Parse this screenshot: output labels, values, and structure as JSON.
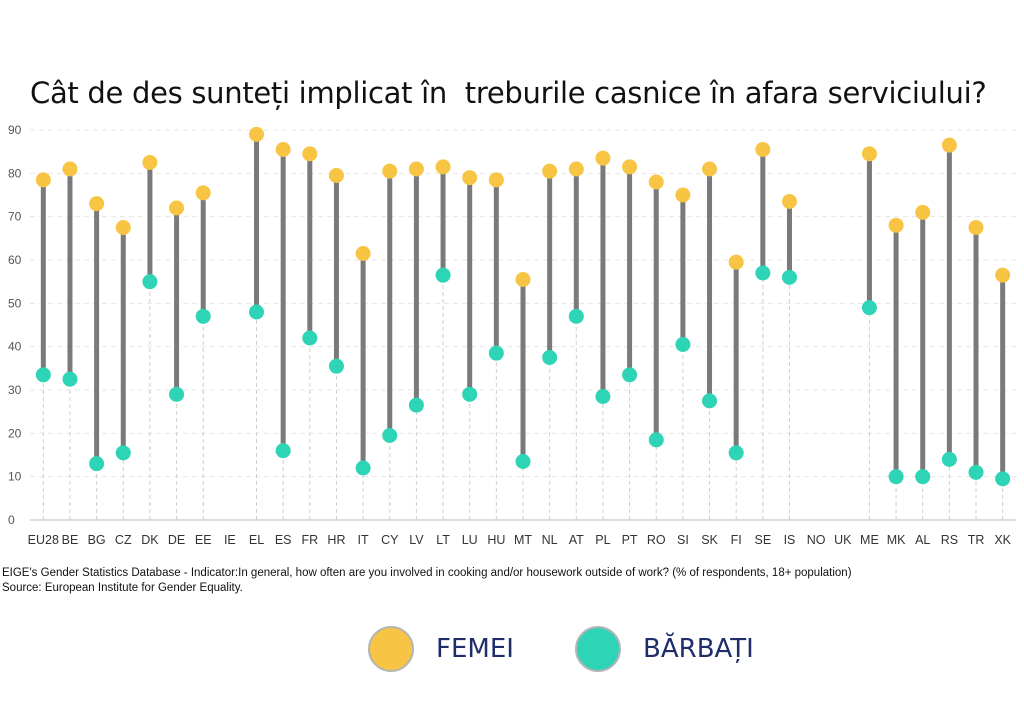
{
  "chart_data": {
    "type": "dumbbell",
    "title": "Cât de des sunteți implicat în  treburile casnice în afara serviciului?",
    "ylim": [
      0,
      90
    ],
    "yticks": [
      0,
      10,
      20,
      30,
      40,
      50,
      60,
      70,
      80,
      90
    ],
    "grid": true,
    "categories": [
      "EU28",
      "BE",
      "BG",
      "CZ",
      "DK",
      "DE",
      "EE",
      "IE",
      "EL",
      "ES",
      "FR",
      "HR",
      "IT",
      "CY",
      "LV",
      "LT",
      "LU",
      "HU",
      "MT",
      "NL",
      "AT",
      "PL",
      "PT",
      "RO",
      "SI",
      "SK",
      "FI",
      "SE",
      "IS",
      "NO",
      "UK",
      "ME",
      "MK",
      "AL",
      "RS",
      "TR",
      "XK"
    ],
    "series": [
      {
        "name": "FEMEI",
        "color": "#f7c443",
        "values": [
          78.5,
          81,
          73,
          67.5,
          82.5,
          72,
          75.5,
          null,
          89,
          85.5,
          84.5,
          79.5,
          61.5,
          80.5,
          81,
          81.5,
          79,
          78.5,
          55.5,
          80.5,
          81,
          83.5,
          81.5,
          78,
          75,
          81,
          59.5,
          85.5,
          73.5,
          null,
          null,
          84.5,
          68,
          71,
          86.5,
          67.5,
          56.5
        ]
      },
      {
        "name": "BĂRBAȚI",
        "color": "#2dd4b5",
        "values": [
          33.5,
          32.5,
          13,
          15.5,
          55,
          29,
          47,
          null,
          48,
          16,
          42,
          35.5,
          12,
          19.5,
          26.5,
          56.5,
          29,
          38.5,
          13.5,
          37.5,
          47,
          28.5,
          33.5,
          18.5,
          40.5,
          27.5,
          15.5,
          57,
          56,
          null,
          null,
          49,
          10,
          10,
          14,
          11,
          9.5
        ]
      }
    ],
    "bar_color": "#7a7a7a",
    "legend": "bottom"
  },
  "note": {
    "line1": "EIGE's Gender Statistics Database - Indicator:In general, how often are you involved in cooking and/or housework outside of work? (% of respondents, 18+ population)",
    "line2": "Source: European Institute for Gender Equality."
  },
  "legend": {
    "women_label": "FEMEI",
    "men_label": "BĂRBAȚI"
  }
}
